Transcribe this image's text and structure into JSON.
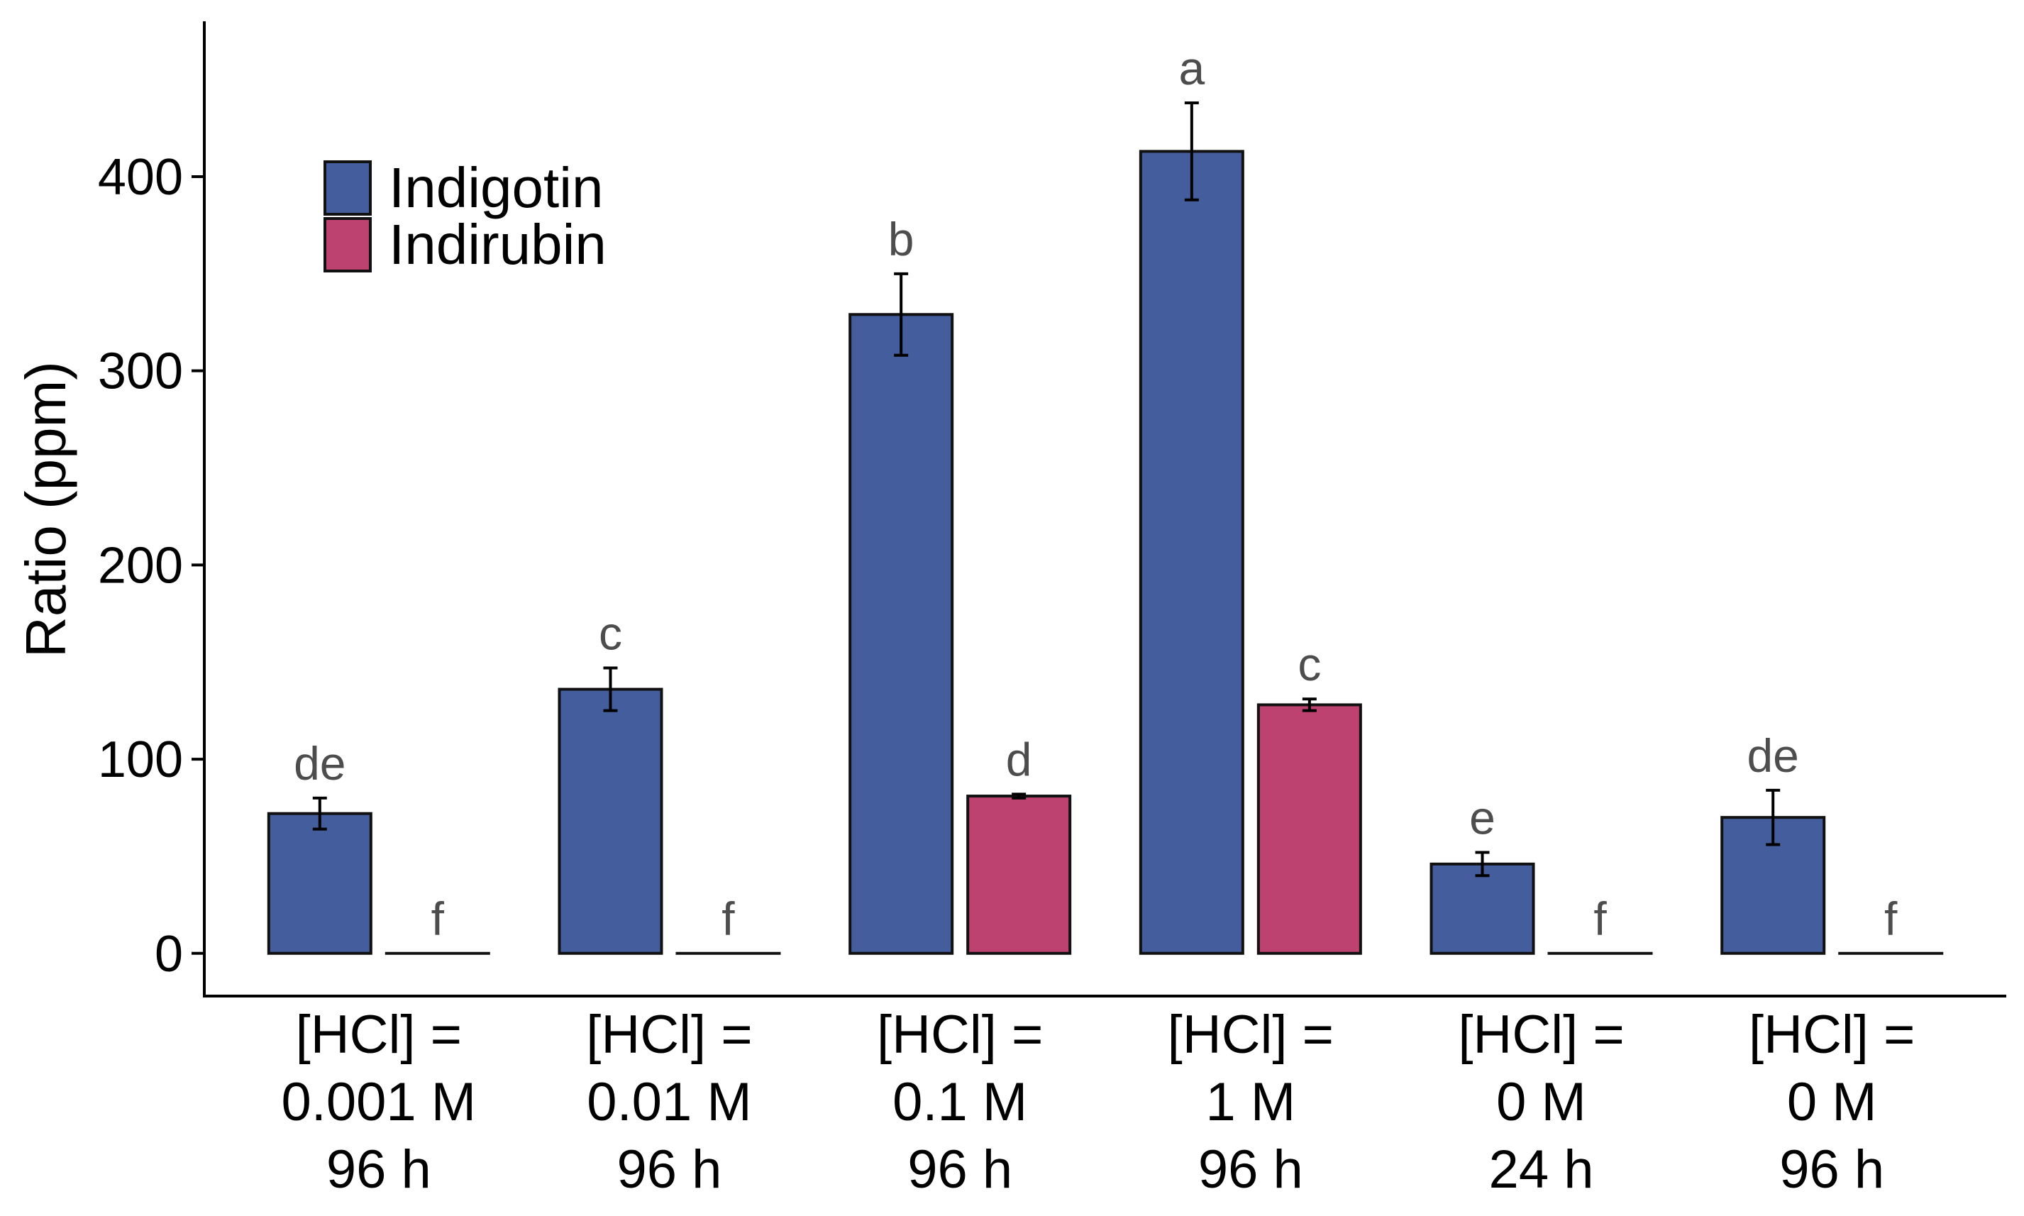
{
  "chart_data": {
    "type": "bar",
    "title": "",
    "xlabel": "",
    "ylabel": "Ratio (ppm)",
    "ylim": [
      -22,
      480
    ],
    "yticks": [
      0,
      100,
      200,
      300,
      400
    ],
    "grid": false,
    "legend_position": "top-left",
    "categories": [
      [
        "[HCl] =",
        "0.001 M",
        "96 h"
      ],
      [
        "[HCl] =",
        "0.01 M",
        "96 h"
      ],
      [
        "[HCl] =",
        "0.1 M",
        "96 h"
      ],
      [
        "[HCl] =",
        "1 M",
        "96 h"
      ],
      [
        "[HCl] =",
        "0 M",
        "24 h"
      ],
      [
        "[HCl] =",
        "0 M",
        "96 h"
      ]
    ],
    "series": [
      {
        "name": "Indigotin",
        "color": "#445d9d",
        "values": [
          72,
          136,
          329,
          413,
          46,
          70
        ],
        "errors": [
          8,
          11,
          21,
          25,
          6,
          14
        ],
        "letters": [
          "de",
          "c",
          "b",
          "a",
          "e",
          "de"
        ]
      },
      {
        "name": "Indirubin",
        "color": "#bd4270",
        "values": [
          0,
          0,
          81,
          128,
          0,
          0
        ],
        "errors": [
          0,
          0,
          1,
          3,
          0,
          0
        ],
        "letters": [
          "f",
          "f",
          "d",
          "c",
          "f",
          "f"
        ]
      }
    ]
  }
}
